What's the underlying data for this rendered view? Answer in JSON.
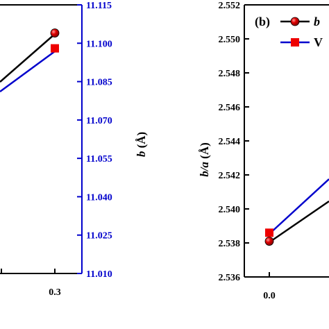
{
  "chart_data": [
    {
      "type": "line",
      "panel": "a (cropped)",
      "x_tick_labels": [
        "0.3"
      ],
      "right_axis": {
        "label_var": "b",
        "label_unit": " (Å)",
        "ticks": [
          "11.115",
          "11.100",
          "11.085",
          "11.070",
          "11.055",
          "11.040",
          "11.025",
          "11.010"
        ],
        "ylim": [
          11.01,
          11.115
        ],
        "color": "#0000cc"
      },
      "series": [
        {
          "marker": "circle",
          "color": "#000000",
          "x": [
            0.3
          ],
          "y": [
            11.104
          ]
        },
        {
          "marker": "square",
          "color": "#0000cc",
          "x": [
            0.3
          ],
          "y": [
            11.098
          ]
        }
      ]
    },
    {
      "type": "line",
      "panel": "b",
      "panel_label": "(b)",
      "ylabel_var": "b/a",
      "ylabel_unit": " (Å)",
      "y_ticks": [
        "2.552",
        "2.550",
        "2.548",
        "2.546",
        "2.544",
        "2.542",
        "2.540",
        "2.538",
        "2.536"
      ],
      "ylim": [
        2.536,
        2.552
      ],
      "x_tick_labels": [
        "0.0"
      ],
      "legend": [
        {
          "text": "b",
          "marker": "circle"
        },
        {
          "text": "V",
          "marker": "square"
        }
      ],
      "series": [
        {
          "marker": "circle",
          "color": "#000000",
          "x": [
            0.0
          ],
          "y": [
            2.5381
          ]
        },
        {
          "marker": "square",
          "color": "#0000cc",
          "x": [
            0.0
          ],
          "y": [
            2.5386
          ]
        }
      ]
    }
  ]
}
